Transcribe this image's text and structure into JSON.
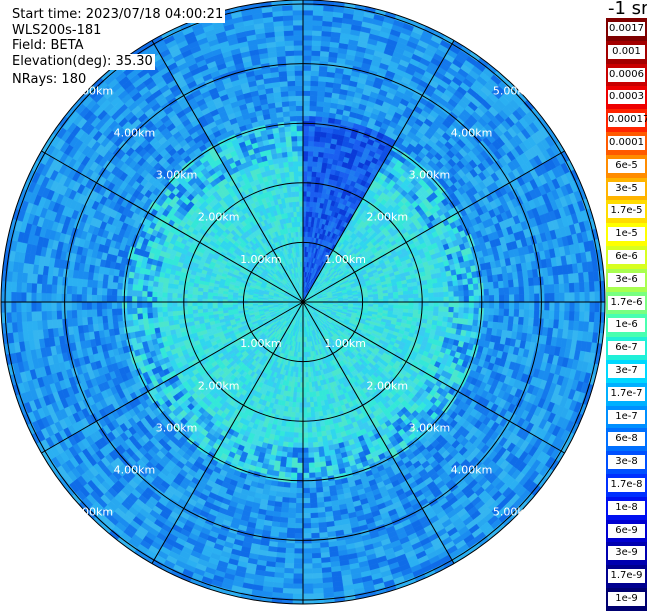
{
  "info": {
    "start_time": "Start time: 2023/07/18 04:00:21",
    "device": "WLS200s-181",
    "field": "Field: BETA",
    "elevation": "Elevation(deg): 35.30",
    "nrays": "NRays: 180"
  },
  "colorbar": {
    "unit": "-1 sr",
    "levels": [
      {
        "label": "0.0017",
        "color": "#7f0000"
      },
      {
        "label": "0.001",
        "color": "#a30000"
      },
      {
        "label": "0.0006",
        "color": "#c80000"
      },
      {
        "label": "0.0003",
        "color": "#ee0000"
      },
      {
        "label": "0.00017",
        "color": "#ff2400"
      },
      {
        "label": "0.0001",
        "color": "#ff5a00"
      },
      {
        "label": "6e-5",
        "color": "#ff8c00"
      },
      {
        "label": "3e-5",
        "color": "#ffb400"
      },
      {
        "label": "1.7e-5",
        "color": "#ffdc00"
      },
      {
        "label": "1e-5",
        "color": "#ffff00"
      },
      {
        "label": "6e-6",
        "color": "#d8ff20"
      },
      {
        "label": "3e-6",
        "color": "#a8ff50"
      },
      {
        "label": "1.7e-6",
        "color": "#78ff80"
      },
      {
        "label": "1e-6",
        "color": "#48ffb0"
      },
      {
        "label": "6e-7",
        "color": "#20f0d8"
      },
      {
        "label": "3e-7",
        "color": "#00d8ff"
      },
      {
        "label": "1.7e-7",
        "color": "#00b0ff"
      },
      {
        "label": "1e-7",
        "color": "#0090ff"
      },
      {
        "label": "6e-8",
        "color": "#0070ff"
      },
      {
        "label": "3e-8",
        "color": "#0050ff"
      },
      {
        "label": "1.7e-8",
        "color": "#0030ff"
      },
      {
        "label": "1e-8",
        "color": "#0010f0"
      },
      {
        "label": "6e-9",
        "color": "#0000d0"
      },
      {
        "label": "3e-9",
        "color": "#0000b0"
      },
      {
        "label": "1.7e-9",
        "color": "#00008f"
      },
      {
        "label": "1e-9",
        "color": "#000070"
      }
    ]
  },
  "range_rings": [
    "1.00km",
    "2.00km",
    "3.00km",
    "4.00km",
    "5.00km"
  ],
  "ring_km": [
    1,
    2,
    3,
    4,
    5
  ],
  "max_range_km": 5.1,
  "azimuth_spokes_deg": [
    0,
    30,
    60,
    90,
    120,
    150,
    180,
    210,
    240,
    270,
    300,
    330
  ],
  "sectors": [
    {
      "name": "north-east sector (low backscatter)",
      "start_deg": 0,
      "end_deg": 30,
      "value": "1.7e-8"
    },
    {
      "name": "general field",
      "value": "1e-7"
    }
  ]
}
